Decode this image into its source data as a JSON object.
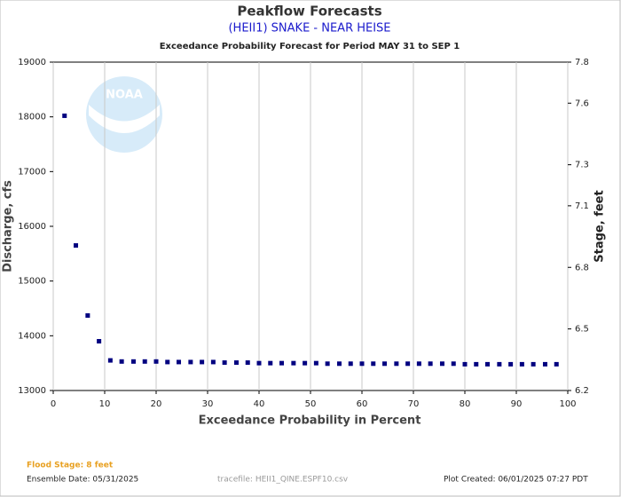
{
  "chart_data": {
    "type": "scatter",
    "title": "Peakflow Forecasts",
    "subtitle": "(HEII1) SNAKE - NEAR HEISE",
    "plot_title": "Exceedance Probability Forecast for Period MAY 31 to SEP 1",
    "xlabel": "Exceedance Probability in Percent",
    "ylabel": "Discharge, cfs",
    "y2label": "Stage, feet",
    "logo_text": "NOAA",
    "color": "#000080",
    "grid": "x",
    "xlim": [
      0,
      100
    ],
    "xticks": [
      0,
      10,
      20,
      30,
      40,
      50,
      60,
      70,
      80,
      90,
      100
    ],
    "ylim": [
      13000,
      19000
    ],
    "yticks": [
      13000,
      14000,
      15000,
      16000,
      17000,
      18000,
      19000
    ],
    "y2lim": [
      6.2,
      7.8
    ],
    "y2ticks": [
      6.2,
      6.5,
      6.8,
      7.1,
      7.3,
      7.6,
      7.8
    ],
    "x": [
      2.2,
      4.4,
      6.7,
      8.9,
      11.1,
      13.3,
      15.6,
      17.8,
      20.0,
      22.2,
      24.4,
      26.7,
      28.9,
      31.1,
      33.3,
      35.6,
      37.8,
      40.0,
      42.2,
      44.4,
      46.7,
      48.9,
      51.1,
      53.3,
      55.6,
      57.8,
      60.0,
      62.2,
      64.4,
      66.7,
      68.9,
      71.1,
      73.3,
      75.6,
      77.8,
      80.0,
      82.2,
      84.4,
      86.7,
      88.9,
      91.1,
      93.3,
      95.6,
      97.8
    ],
    "values": [
      18020,
      15650,
      14370,
      13900,
      13550,
      13530,
      13530,
      13530,
      13530,
      13520,
      13520,
      13520,
      13520,
      13520,
      13510,
      13510,
      13510,
      13500,
      13500,
      13500,
      13500,
      13500,
      13500,
      13490,
      13490,
      13490,
      13490,
      13490,
      13490,
      13490,
      13490,
      13490,
      13490,
      13490,
      13490,
      13480,
      13480,
      13480,
      13480,
      13480,
      13480,
      13480,
      13480,
      13480
    ]
  },
  "footer": {
    "flood_stage": "Flood Stage: 8 feet",
    "ensemble_date": "Ensemble Date: 05/31/2025",
    "tracefile": "tracefile: HEII1_QINE.ESPF10.csv",
    "plot_created": "Plot Created: 06/01/2025 07:27 PDT"
  }
}
